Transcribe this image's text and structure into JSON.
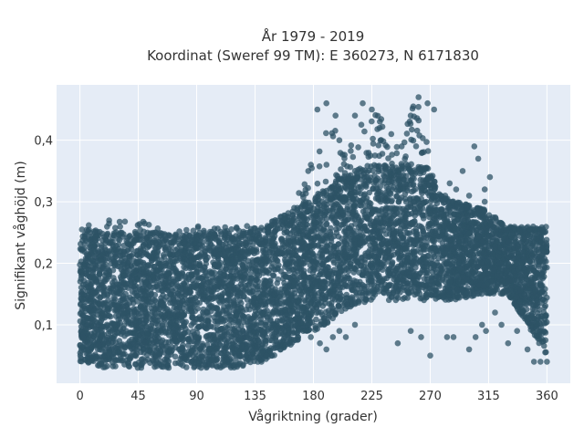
{
  "chart_data": {
    "type": "scatter",
    "title_line1": "År 1979 - 2019",
    "title_line2": "Koordinat (Sweref 99 TM): E 360273, N 6171830",
    "xlabel": "Vågriktning (grader)",
    "ylabel": "Signifikant våghöjd (m)",
    "xlim": [
      -18,
      378
    ],
    "ylim": [
      0.005,
      0.49
    ],
    "x_ticks": [
      0,
      45,
      90,
      135,
      180,
      225,
      270,
      315,
      360
    ],
    "x_tick_labels": [
      "0",
      "45",
      "90",
      "135",
      "180",
      "225",
      "270",
      "315",
      "360"
    ],
    "y_ticks": [
      0.1,
      0.2,
      0.3,
      0.4
    ],
    "y_tick_labels": [
      "0,1",
      "0,2",
      "0,3",
      "0,4"
    ],
    "grid": true,
    "colors": {
      "marker": "#2e5366",
      "plot_bg": "#e5ecf6",
      "grid": "#ffffff"
    },
    "envelope": [
      {
        "x": 0,
        "ymin": 0.04,
        "ymax": 0.26
      },
      {
        "x": 20,
        "ymin": 0.03,
        "ymax": 0.27
      },
      {
        "x": 40,
        "ymin": 0.03,
        "ymax": 0.27
      },
      {
        "x": 60,
        "ymin": 0.03,
        "ymax": 0.27
      },
      {
        "x": 80,
        "ymin": 0.03,
        "ymax": 0.26
      },
      {
        "x": 100,
        "ymin": 0.03,
        "ymax": 0.26
      },
      {
        "x": 120,
        "ymin": 0.03,
        "ymax": 0.26
      },
      {
        "x": 140,
        "ymin": 0.04,
        "ymax": 0.27
      },
      {
        "x": 150,
        "ymin": 0.05,
        "ymax": 0.28
      },
      {
        "x": 165,
        "ymin": 0.07,
        "ymax": 0.31
      },
      {
        "x": 180,
        "ymin": 0.09,
        "ymax": 0.36
      },
      {
        "x": 190,
        "ymin": 0.1,
        "ymax": 0.46
      },
      {
        "x": 200,
        "ymin": 0.12,
        "ymax": 0.4
      },
      {
        "x": 210,
        "ymin": 0.13,
        "ymax": 0.4
      },
      {
        "x": 225,
        "ymin": 0.14,
        "ymax": 0.46
      },
      {
        "x": 245,
        "ymin": 0.14,
        "ymax": 0.4
      },
      {
        "x": 260,
        "ymin": 0.14,
        "ymax": 0.47
      },
      {
        "x": 275,
        "ymin": 0.14,
        "ymax": 0.32
      },
      {
        "x": 290,
        "ymin": 0.14,
        "ymax": 0.3
      },
      {
        "x": 310,
        "ymin": 0.15,
        "ymax": 0.29
      },
      {
        "x": 330,
        "ymin": 0.15,
        "ymax": 0.26
      },
      {
        "x": 360,
        "ymin": 0.05,
        "ymax": 0.26
      }
    ],
    "outliers": [
      {
        "x": 183,
        "y": 0.45
      },
      {
        "x": 190,
        "y": 0.46
      },
      {
        "x": 197,
        "y": 0.44
      },
      {
        "x": 212,
        "y": 0.44
      },
      {
        "x": 218,
        "y": 0.46
      },
      {
        "x": 225,
        "y": 0.45
      },
      {
        "x": 231,
        "y": 0.42
      },
      {
        "x": 240,
        "y": 0.41
      },
      {
        "x": 255,
        "y": 0.44
      },
      {
        "x": 261,
        "y": 0.47
      },
      {
        "x": 268,
        "y": 0.46
      },
      {
        "x": 273,
        "y": 0.45
      },
      {
        "x": 178,
        "y": 0.36
      },
      {
        "x": 176,
        "y": 0.35
      },
      {
        "x": 200,
        "y": 0.4
      },
      {
        "x": 248,
        "y": 0.39
      },
      {
        "x": 285,
        "y": 0.33
      },
      {
        "x": 295,
        "y": 0.35
      },
      {
        "x": 300,
        "y": 0.31
      },
      {
        "x": 304,
        "y": 0.39
      },
      {
        "x": 307,
        "y": 0.37
      },
      {
        "x": 312,
        "y": 0.3
      },
      {
        "x": 316,
        "y": 0.34
      },
      {
        "x": 312,
        "y": 0.32
      },
      {
        "x": 290,
        "y": 0.32
      },
      {
        "x": 287,
        "y": 0.3
      },
      {
        "x": 178,
        "y": 0.08
      },
      {
        "x": 185,
        "y": 0.07
      },
      {
        "x": 190,
        "y": 0.06
      },
      {
        "x": 195,
        "y": 0.08
      },
      {
        "x": 200,
        "y": 0.09
      },
      {
        "x": 205,
        "y": 0.08
      },
      {
        "x": 212,
        "y": 0.1
      },
      {
        "x": 245,
        "y": 0.07
      },
      {
        "x": 255,
        "y": 0.09
      },
      {
        "x": 263,
        "y": 0.08
      },
      {
        "x": 270,
        "y": 0.05
      },
      {
        "x": 283,
        "y": 0.08
      },
      {
        "x": 288,
        "y": 0.08
      },
      {
        "x": 300,
        "y": 0.06
      },
      {
        "x": 305,
        "y": 0.08
      },
      {
        "x": 310,
        "y": 0.1
      },
      {
        "x": 313,
        "y": 0.09
      },
      {
        "x": 320,
        "y": 0.12
      },
      {
        "x": 325,
        "y": 0.1
      },
      {
        "x": 330,
        "y": 0.07
      },
      {
        "x": 337,
        "y": 0.09
      },
      {
        "x": 340,
        "y": 0.12
      },
      {
        "x": 345,
        "y": 0.06
      },
      {
        "x": 350,
        "y": 0.04
      },
      {
        "x": 355,
        "y": 0.04
      },
      {
        "x": 360,
        "y": 0.04
      }
    ]
  }
}
